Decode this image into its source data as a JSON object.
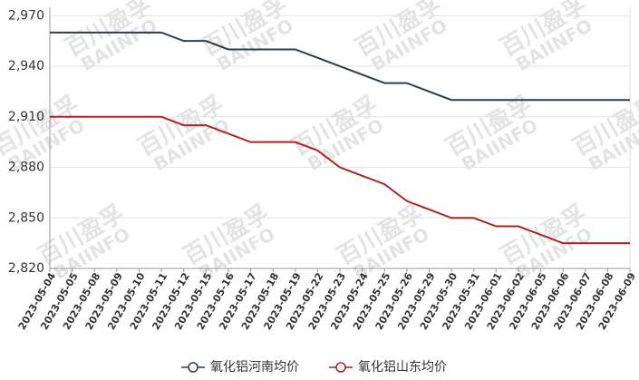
{
  "chart_data": {
    "type": "line",
    "watermark": [
      "百川盈孚",
      "BAIINFO"
    ],
    "categories": [
      "2023-05-04",
      "2023-05-05",
      "2023-05-08",
      "2023-05-09",
      "2023-05-10",
      "2023-05-11",
      "2023-05-12",
      "2023-05-15",
      "2023-05-16",
      "2023-05-17",
      "2023-05-18",
      "2023-05-19",
      "2023-05-22",
      "2023-05-23",
      "2023-05-24",
      "2023-05-25",
      "2023-05-26",
      "2023-05-29",
      "2023-05-30",
      "2023-05-31",
      "2023-06-01",
      "2023-06-02",
      "2023-06-05",
      "2023-06-06",
      "2023-06-07",
      "2023-06-08",
      "2023-06-09"
    ],
    "series": [
      {
        "name": "氧化铝河南均价",
        "color": "#2e3c4b",
        "values": [
          2960,
          2960,
          2960,
          2960,
          2960,
          2960,
          2955,
          2955,
          2950,
          2950,
          2950,
          2950,
          2945,
          2940,
          2935,
          2930,
          2930,
          2925,
          2920,
          2920,
          2920,
          2920,
          2920,
          2920,
          2920,
          2920,
          2920
        ]
      },
      {
        "name": "氧化铝山东均价",
        "color": "#b22222",
        "values": [
          2910,
          2910,
          2910,
          2910,
          2910,
          2910,
          2905,
          2905,
          2900,
          2895,
          2895,
          2895,
          2890,
          2880,
          2875,
          2870,
          2860,
          2855,
          2850,
          2850,
          2845,
          2845,
          2840,
          2835,
          2835,
          2835,
          2835
        ]
      }
    ],
    "ylim": [
      2820,
      2975
    ],
    "yticks": [
      {
        "value": 2820,
        "label": "2,820"
      },
      {
        "value": 2850,
        "label": "2,850"
      },
      {
        "value": 2880,
        "label": "2,880"
      },
      {
        "value": 2910,
        "label": "2,910"
      },
      {
        "value": 2940,
        "label": "2,940"
      },
      {
        "value": 2970,
        "label": "2,970"
      }
    ],
    "grid": true,
    "legend": "bottom"
  }
}
